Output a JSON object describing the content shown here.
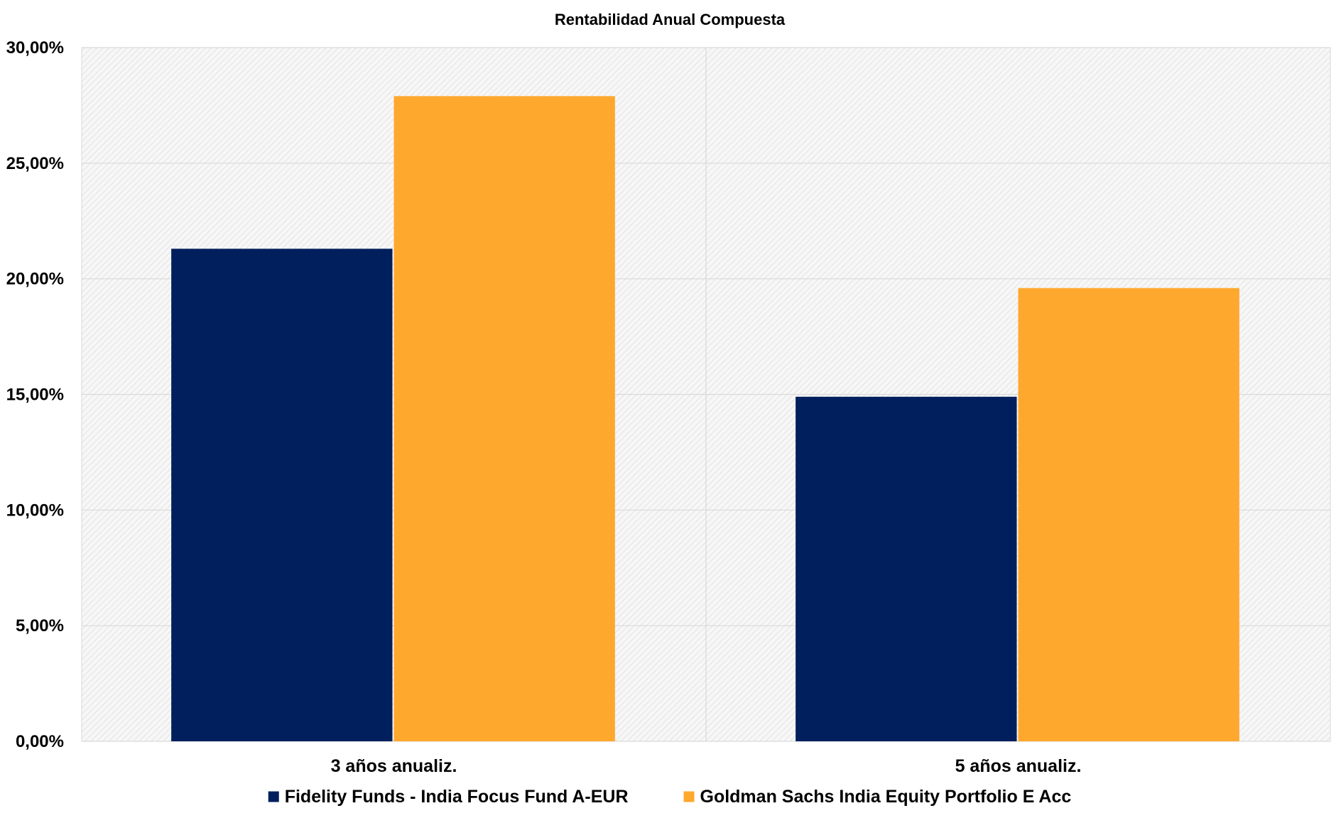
{
  "chart_data": {
    "type": "bar",
    "title": "Rentabilidad Anual Compuesta",
    "xlabel": "",
    "ylabel": "",
    "categories": [
      "3 años anualiz.",
      "5 años anualiz."
    ],
    "series": [
      {
        "name": "Fidelity Funds - India Focus Fund A-EUR",
        "values": [
          21.3,
          14.9
        ],
        "color": "#001F5C"
      },
      {
        "name": "Goldman Sachs India Equity Portfolio E Acc",
        "values": [
          27.9,
          19.6
        ],
        "color": "#FFA82E"
      }
    ],
    "ylim": [
      0,
      30
    ],
    "yticks": [
      0,
      5,
      10,
      15,
      20,
      25,
      30
    ],
    "ytick_labels": [
      "0,00%",
      "5,00%",
      "10,00%",
      "15,00%",
      "20,00%",
      "25,00%",
      "30,00%"
    ],
    "grid": true,
    "legend_position": "bottom",
    "plot_background": "#f2f2f2"
  }
}
